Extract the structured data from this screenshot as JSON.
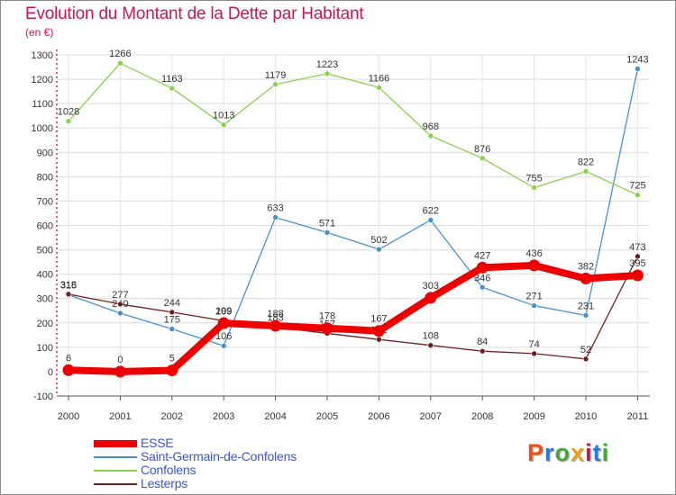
{
  "title": "Evolution du Montant de la Dette par Habitant",
  "subtitle": "(en €)",
  "logo_text": "Proxiti",
  "colors": {
    "title": "#c2185b",
    "esse": "#ee0000",
    "saint_germain": "#4a90c8",
    "confolens": "#8cd050",
    "lesterps": "#6b1f1f"
  },
  "chart_data": {
    "type": "line",
    "title": "Evolution du Montant de la Dette par Habitant",
    "ylabel": "(en €)",
    "ylim": [
      -100,
      1300
    ],
    "yticks": [
      -100,
      0,
      100,
      200,
      300,
      400,
      500,
      600,
      700,
      800,
      900,
      1000,
      1100,
      1200,
      1300
    ],
    "x": [
      "2000",
      "2001",
      "2002",
      "2003",
      "2004",
      "2005",
      "2006",
      "2007",
      "2008",
      "2009",
      "2010",
      "2011"
    ],
    "grid": true,
    "legend_position": "bottom-left",
    "series": [
      {
        "name": "ESSE",
        "key": "esse",
        "values": [
          6,
          0,
          5,
          199,
          188,
          178,
          167,
          303,
          427,
          436,
          382,
          395
        ]
      },
      {
        "name": "Saint-Germain-de-Confolens",
        "key": "saint_germain",
        "values": [
          315,
          240,
          175,
          106,
          633,
          571,
          502,
          622,
          346,
          271,
          231,
          1243
        ]
      },
      {
        "name": "Confolens",
        "key": "confolens",
        "values": [
          1028,
          1266,
          1163,
          1013,
          1179,
          1223,
          1166,
          968,
          876,
          755,
          822,
          725
        ]
      },
      {
        "name": "Lesterps",
        "key": "lesterps",
        "values": [
          318,
          277,
          244,
          209,
          183,
          157,
          132,
          108,
          84,
          74,
          52,
          473
        ]
      }
    ]
  }
}
